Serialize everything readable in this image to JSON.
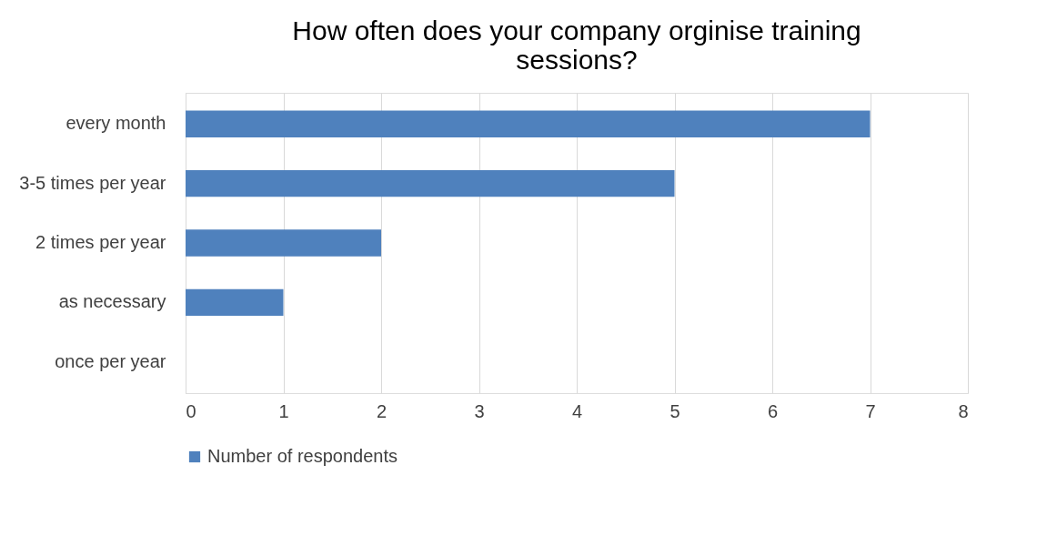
{
  "chart_data": {
    "type": "bar",
    "orientation": "horizontal",
    "title": "How often does your company orginise training sessions?",
    "categories": [
      "every month",
      "3-5 times per year",
      "2 times per year",
      "as necessary",
      "once per year"
    ],
    "series": [
      {
        "name": "Number of respondents",
        "color": "#4f81bd",
        "values": [
          7,
          5,
          2,
          1,
          0
        ]
      }
    ],
    "xlim": [
      0,
      8
    ],
    "xticks": [
      0,
      1,
      2,
      3,
      4,
      5,
      6,
      7,
      8
    ],
    "grid": "x",
    "legend": "bottom"
  }
}
